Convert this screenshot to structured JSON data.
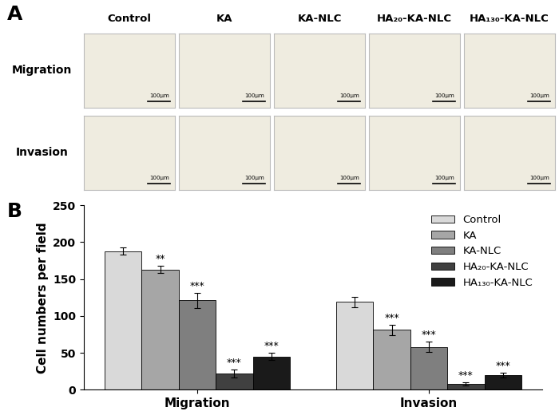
{
  "panel_labels": [
    "A",
    "B"
  ],
  "image_grid": {
    "rows": [
      "Migration",
      "Invasion"
    ],
    "columns": [
      "Control",
      "KA",
      "KA-NLC",
      "HA₂₀-KA-NLC",
      "HA₁₃₀-KA-NLC"
    ],
    "scale_bar": "100μm"
  },
  "chart_data": {
    "type": "bar",
    "categories": [
      "Migration",
      "Invasion"
    ],
    "y_label": "Cell numbers per field",
    "ylim": [
      0,
      250
    ],
    "yticks": [
      0,
      50,
      100,
      150,
      200,
      250
    ],
    "legend": "upper right",
    "series": [
      {
        "name": "Control",
        "color": "#d9d9d9",
        "values": [
          188,
          119
        ],
        "error": [
          5,
          7
        ],
        "significance": [
          null,
          null
        ]
      },
      {
        "name": "KA",
        "color": "#a6a6a6",
        "values": [
          163,
          81
        ],
        "error": [
          5,
          7
        ],
        "significance": [
          "**",
          "***"
        ]
      },
      {
        "name": "KA-NLC",
        "color": "#7f7f7f",
        "values": [
          121,
          58
        ],
        "error": [
          10,
          7
        ],
        "significance": [
          "***",
          "***"
        ]
      },
      {
        "name": "HA₂₀-KA-NLC",
        "color": "#404040",
        "values": [
          22,
          8
        ],
        "error": [
          5,
          2
        ],
        "significance": [
          "***",
          "***"
        ]
      },
      {
        "name": "HA₁₃₀-KA-NLC",
        "color": "#1a1a1a",
        "values": [
          45,
          20
        ],
        "error": [
          5,
          3
        ],
        "significance": [
          "***",
          "***"
        ]
      }
    ]
  }
}
